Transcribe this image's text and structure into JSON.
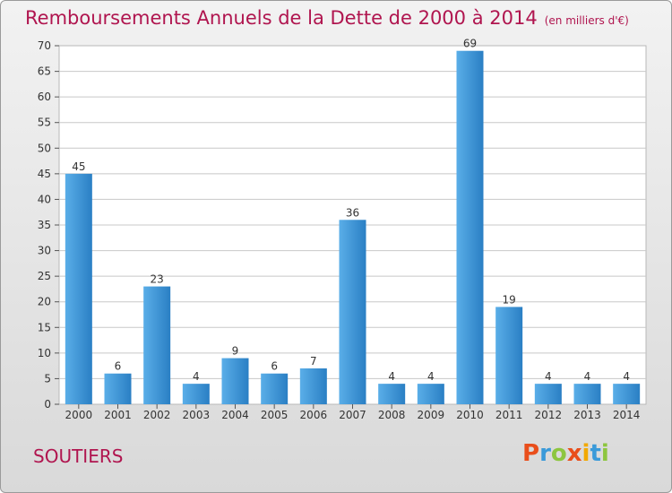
{
  "header": {
    "title": "Remboursements Annuels de la Dette de 2000 à 2014",
    "subtitle": "(en milliers d'€)"
  },
  "footer": {
    "place": "SOUTIERS",
    "logo_text": "Proxiti",
    "logo_colors": [
      "#e94e1b",
      "#3a9ad9",
      "#8dc63f",
      "#e94e1b",
      "#f2a900",
      "#3a9ad9",
      "#8dc63f"
    ]
  },
  "colors": {
    "bar_light": "#5aaee8",
    "bar_dark": "#2a7fc4",
    "grid": "#c8c8c8",
    "title": "#b0154f"
  },
  "chart_data": {
    "type": "bar",
    "title": "Remboursements Annuels de la Dette de 2000 à 2014",
    "subtitle": "(en milliers d'€)",
    "xlabel": "",
    "ylabel": "",
    "categories": [
      "2000",
      "2001",
      "2002",
      "2003",
      "2004",
      "2005",
      "2006",
      "2007",
      "2008",
      "2009",
      "2010",
      "2011",
      "2012",
      "2013",
      "2014"
    ],
    "values": [
      45,
      6,
      23,
      4,
      9,
      6,
      7,
      36,
      4,
      4,
      69,
      19,
      4,
      4,
      4
    ],
    "ylim": [
      0,
      70
    ],
    "yticks": [
      0,
      5,
      10,
      15,
      20,
      25,
      30,
      35,
      40,
      45,
      50,
      55,
      60,
      65,
      70
    ],
    "grid": true,
    "legend": "none"
  }
}
